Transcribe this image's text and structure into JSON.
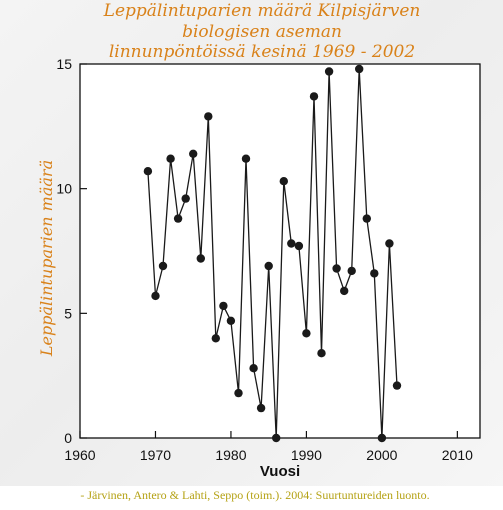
{
  "chart_data": {
    "type": "line",
    "title_lines": [
      "Leppälintuparien määrä Kilpisjärven",
      "biologisen aseman",
      "linnunpöntöissä kesinä 1969 - 2002"
    ],
    "xlabel": "Vuosi",
    "ylabel": "Leppälintuparien määrä",
    "xlim": [
      1960,
      2013
    ],
    "ylim": [
      0,
      15
    ],
    "xticks": [
      1960,
      1970,
      1980,
      1990,
      2000,
      2010
    ],
    "yticks": [
      0,
      5,
      10,
      15
    ],
    "grid": false,
    "marker": "circle",
    "colors": {
      "line": "#1a1a1a",
      "marker": "#1a1a1a",
      "title": "#d9821a",
      "source": "#b5a215"
    },
    "x": [
      1969,
      1970,
      1971,
      1972,
      1973,
      1974,
      1975,
      1976,
      1977,
      1978,
      1979,
      1980,
      1981,
      1982,
      1983,
      1984,
      1985,
      1986,
      1987,
      1988,
      1989,
      1990,
      1991,
      1992,
      1993,
      1994,
      1995,
      1996,
      1997,
      1998,
      1999,
      2000,
      2001,
      2002
    ],
    "values": [
      10.7,
      5.7,
      6.9,
      11.2,
      8.8,
      9.6,
      11.4,
      7.2,
      12.9,
      4.0,
      5.3,
      4.7,
      1.8,
      11.2,
      2.8,
      1.2,
      6.9,
      0.0,
      10.3,
      7.8,
      7.7,
      4.2,
      13.7,
      3.4,
      14.7,
      6.8,
      5.9,
      6.7,
      14.8,
      8.8,
      6.6,
      0.0,
      7.8,
      2.1
    ]
  },
  "source_note": "- Järvinen, Antero & Lahti, Seppo (toim.). 2004: Suurtuntureiden luonto."
}
